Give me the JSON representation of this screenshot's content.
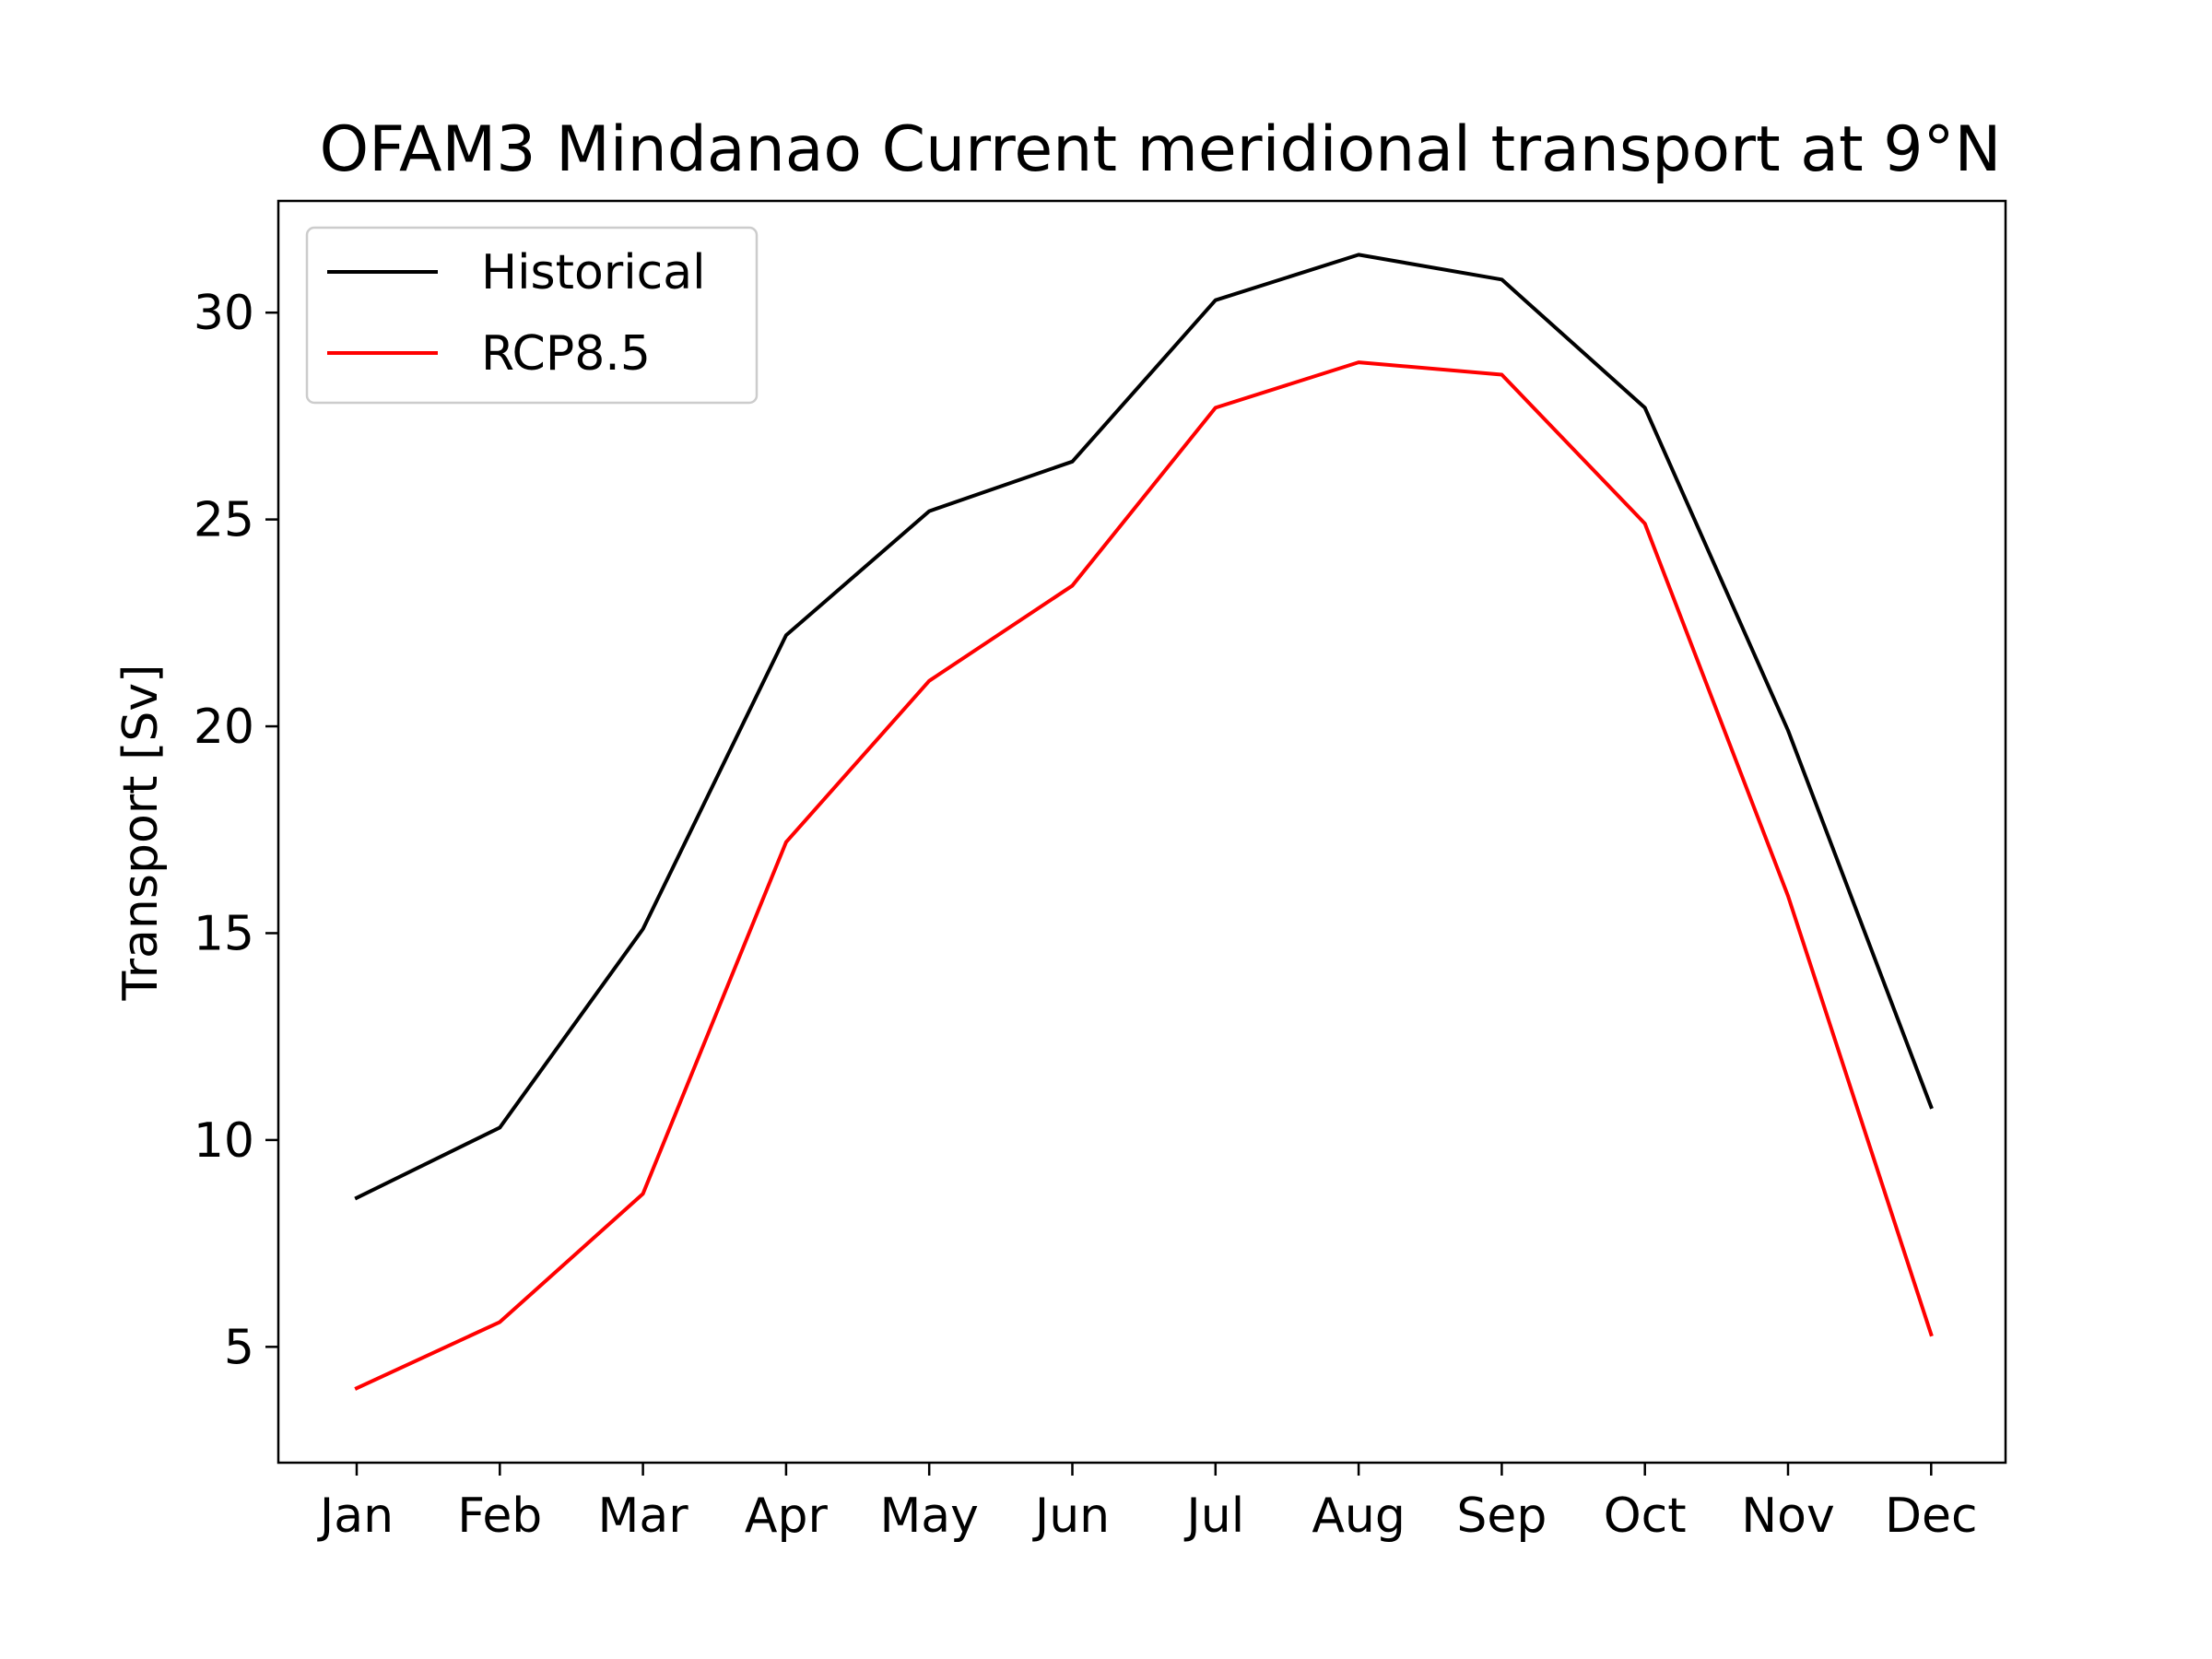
{
  "chart_data": {
    "type": "line",
    "title": "OFAM3 Mindanao Current meridional transport at 9°N",
    "xlabel": "",
    "ylabel": "Transport [Sv]",
    "categories": [
      "Jan",
      "Feb",
      "Mar",
      "Apr",
      "May",
      "Jun",
      "Jul",
      "Aug",
      "Sep",
      "Oct",
      "Nov",
      "Dec"
    ],
    "ylim": [
      2.2,
      32.7
    ],
    "yticks": [
      5,
      10,
      15,
      20,
      25,
      30
    ],
    "grid": false,
    "legend_position": "upper-left",
    "series": [
      {
        "name": "Historical",
        "color": "#000000",
        "values": [
          8.6,
          10.3,
          15.1,
          22.2,
          25.2,
          26.4,
          30.3,
          31.4,
          30.8,
          27.7,
          19.9,
          10.8
        ]
      },
      {
        "name": "RCP8.5",
        "color": "#ff0000",
        "values": [
          4.0,
          5.6,
          8.7,
          17.2,
          21.1,
          23.4,
          27.7,
          28.8,
          28.5,
          24.9,
          15.9,
          5.3
        ]
      }
    ]
  }
}
